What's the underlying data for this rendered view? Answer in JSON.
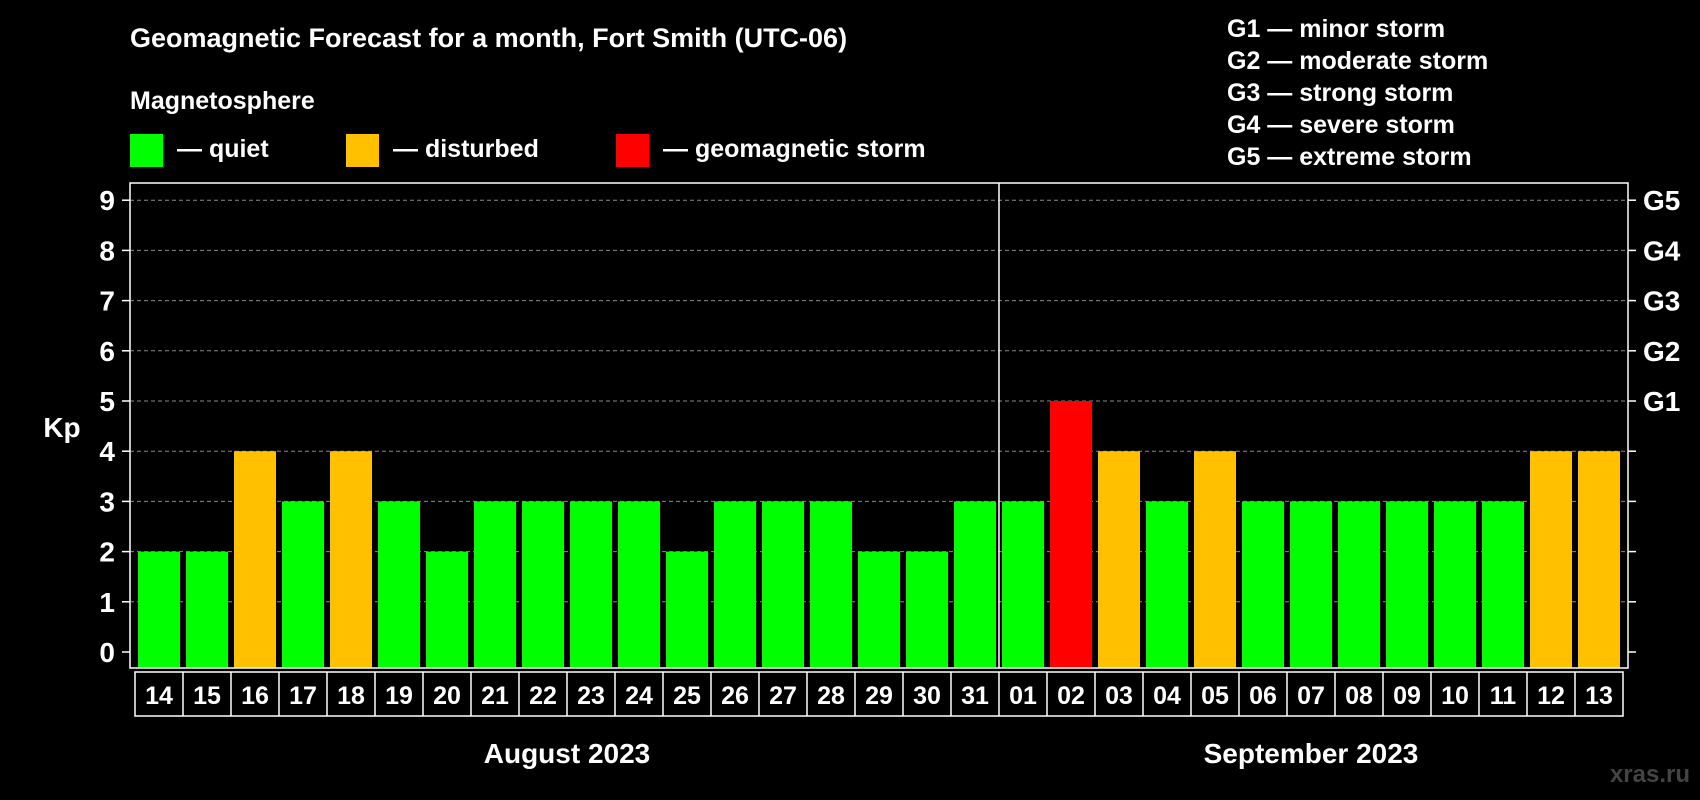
{
  "chart_data": {
    "type": "bar",
    "title": "Geomagnetic Forecast for a month, Fort Smith (UTC-06)",
    "ylabel": "Kp",
    "ylim": [
      0,
      9
    ],
    "yticks": [
      "0",
      "1",
      "2",
      "3",
      "4",
      "5",
      "6",
      "7",
      "8",
      "9"
    ],
    "grid": true,
    "legend": {
      "heading": "Magnetosphere",
      "items": [
        {
          "label": "— quiet",
          "color": "#00ff00"
        },
        {
          "label": "— disturbed",
          "color": "#ffc000"
        },
        {
          "label": "— geomagnetic storm",
          "color": "#ff0000"
        }
      ]
    },
    "storm_scale": [
      "G1 — minor storm",
      "G2 — moderate storm",
      "G3 — strong storm",
      "G4 — severe storm",
      "G5 — extreme storm"
    ],
    "right_axis_labels": [
      {
        "kp": 5,
        "label": "G1"
      },
      {
        "kp": 6,
        "label": "G2"
      },
      {
        "kp": 7,
        "label": "G3"
      },
      {
        "kp": 8,
        "label": "G4"
      },
      {
        "kp": 9,
        "label": "G5"
      }
    ],
    "months": [
      {
        "label": "August 2023",
        "days": 18
      },
      {
        "label": "September 2023",
        "days": 13
      }
    ],
    "categories": [
      "14",
      "15",
      "16",
      "17",
      "18",
      "19",
      "20",
      "21",
      "22",
      "23",
      "24",
      "25",
      "26",
      "27",
      "28",
      "29",
      "30",
      "31",
      "01",
      "02",
      "03",
      "04",
      "05",
      "06",
      "07",
      "08",
      "09",
      "10",
      "11",
      "12",
      "13"
    ],
    "values": [
      2,
      2,
      4,
      3,
      4,
      3,
      2,
      3,
      3,
      3,
      3,
      2,
      3,
      3,
      3,
      2,
      2,
      3,
      3,
      5,
      4,
      3,
      4,
      3,
      3,
      3,
      3,
      3,
      3,
      4,
      4
    ],
    "colors": {
      "quiet": "#00ff00",
      "disturbed": "#ffc000",
      "storm": "#ff0000"
    }
  },
  "watermark": "xras.ru"
}
